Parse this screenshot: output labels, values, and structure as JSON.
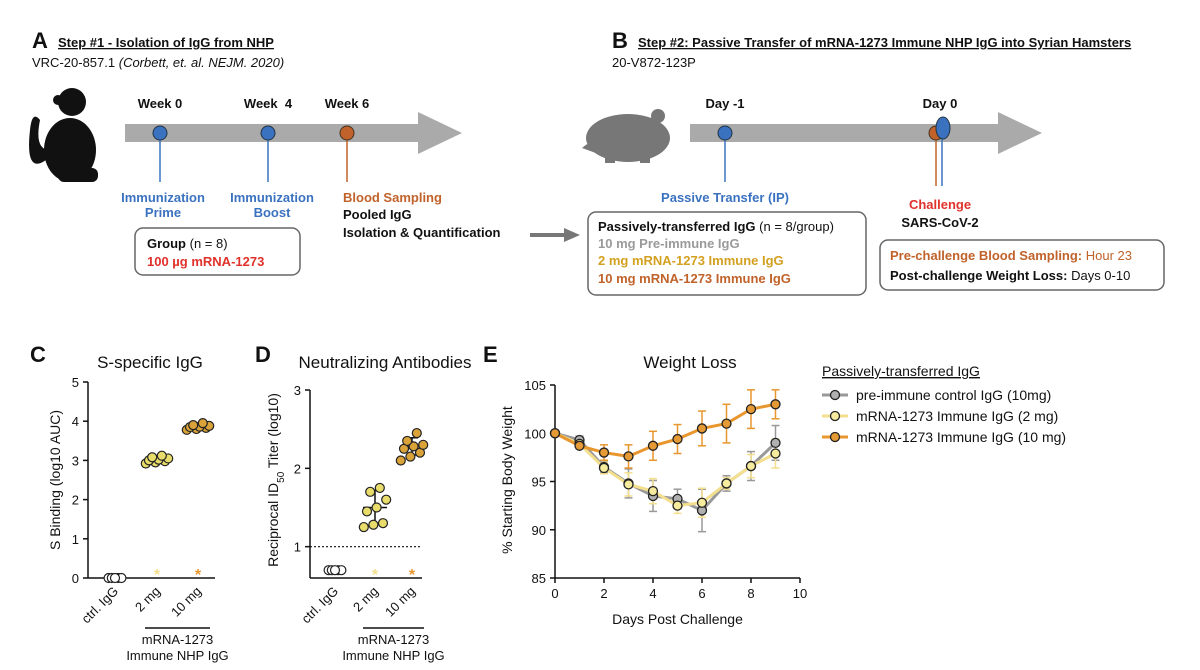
{
  "panel_a": {
    "letter": "A",
    "title": "Step #1 - Isolation of IgG from NHP",
    "subtitle": "VRC-20-857.1",
    "citation": "(Corbett, et. al. NEJM. 2020)",
    "timepoints": [
      "Week 0",
      "Week  4",
      "Week 6"
    ],
    "events": [
      {
        "lines": [
          "Immunization",
          "Prime"
        ]
      },
      {
        "lines": [
          "Immunization",
          "Boost"
        ]
      },
      {
        "lines": [
          "Blood Sampling",
          "Pooled IgG",
          "Isolation & Quantification"
        ]
      }
    ],
    "box": {
      "label": "Group",
      "count": "(n = 8)",
      "treatment": "100 µg mRNA-1273"
    }
  },
  "panel_b": {
    "letter": "B",
    "title": "Step #2: Passive Transfer of mRNA-1273 Immune NHP IgG into Syrian Hamsters",
    "subtitle": "20-V872-123P",
    "timepoints": [
      "Day -1",
      "Day 0"
    ],
    "events": [
      {
        "lines": [
          "Passive Transfer (IP)"
        ]
      },
      {
        "lines": [
          "Challenge",
          "SARS-CoV-2"
        ]
      }
    ],
    "groups_box": {
      "label": "Passively-transferred IgG",
      "count": "(n = 8/group)",
      "items": [
        "10 mg Pre-immune IgG",
        "2 mg mRNA-1273 Immune IgG",
        "10 mg mRNA-1273 Immune IgG"
      ]
    },
    "sampling_box": {
      "lines": [
        {
          "label": "Pre-challenge Blood Sampling:",
          "value": "Hour 23"
        },
        {
          "label": "Post-challenge Weight Loss:",
          "value": "Days 0-10"
        }
      ]
    }
  },
  "chart_data": [
    {
      "type": "dot",
      "panel": "C",
      "title": "S-specific IgG",
      "ylabel": [
        "S Binding (log10 AUC)"
      ],
      "categories": [
        "ctrl. IgG",
        "2 mg",
        "10 mg"
      ],
      "group_label": [
        "mRNA-1273",
        "Immune NHP IgG"
      ],
      "colors": [
        "#ffffff",
        "#e8dc6a",
        "#d9a33a"
      ],
      "values": [
        [
          0,
          0,
          0,
          0,
          0
        ],
        [
          2.92,
          2.95,
          2.98,
          3.0,
          3.02,
          3.05,
          3.08,
          3.12
        ],
        [
          3.78,
          3.8,
          3.83,
          3.85,
          3.86,
          3.88,
          3.9,
          3.95
        ]
      ],
      "labels": [
        null,
        "*",
        "*"
      ],
      "label_colors": [
        null,
        "#f3df8e",
        "#e8962e"
      ],
      "ylim": [
        0,
        5
      ],
      "yticks": [
        0,
        1,
        2,
        3,
        4,
        5
      ]
    },
    {
      "type": "dot",
      "panel": "D",
      "title": "Neutralizing Antibodies",
      "ylabel": [
        "Reciprocal ID",
        "50",
        " Titer (log10)"
      ],
      "categories": [
        "ctrl. IgG",
        "2 mg",
        "10 mg"
      ],
      "group_label": [
        "mRNA-1273",
        "Immune NHP IgG"
      ],
      "colors": [
        "#ffffff",
        "#e8dc6a",
        "#d9a33a"
      ],
      "values": [
        [
          0.7,
          0.7,
          0.7,
          0.7,
          0.7
        ],
        [
          1.25,
          1.28,
          1.3,
          1.45,
          1.5,
          1.6,
          1.7,
          1.75
        ],
        [
          2.1,
          2.15,
          2.2,
          2.25,
          2.28,
          2.3,
          2.35,
          2.45
        ]
      ],
      "means": [
        null,
        1.5,
        2.28
      ],
      "errors": [
        null,
        0.22,
        0.11
      ],
      "labels": [
        null,
        "*",
        "*"
      ],
      "label_colors": [
        null,
        "#f3df8e",
        "#e8962e"
      ],
      "reference_line": 1,
      "ylim": [
        0.6,
        3
      ],
      "yticks": [
        1,
        2,
        3
      ]
    },
    {
      "type": "line",
      "panel": "E",
      "title": "Weight Loss",
      "xlabel": "Days Post Challenge",
      "ylabel": [
        "% Starting Body Weight"
      ],
      "x": [
        0,
        1,
        2,
        3,
        4,
        5,
        6,
        7,
        8,
        9
      ],
      "legend_title": "Passively-transferred IgG",
      "series": [
        {
          "name": "pre-immune control IgG (10mg)",
          "color": "#999999",
          "marker": "#b0b0b0",
          "values": [
            100,
            99.3,
            96.5,
            94.8,
            93.5,
            93.2,
            92.0,
            94.8,
            96.6,
            99.0
          ],
          "errors": [
            0,
            0.4,
            0.6,
            1.5,
            1.6,
            1.0,
            2.2,
            0.8,
            1.5,
            1.8
          ]
        },
        {
          "name": "mRNA-1273 Immune IgG (2 mg)",
          "color": "#f3df8e",
          "marker": "#f7ec9e",
          "values": [
            100,
            98.9,
            96.4,
            94.7,
            94.0,
            92.5,
            92.8,
            94.8,
            96.6,
            97.9
          ],
          "errors": [
            0,
            0.3,
            0.6,
            1.2,
            1.3,
            0.8,
            1.5,
            0.6,
            1.2,
            1.5
          ]
        },
        {
          "name": "mRNA-1273 Immune IgG (10 mg)",
          "color": "#e8962e",
          "marker": "#e59a35",
          "values": [
            100,
            98.7,
            98.0,
            97.6,
            98.7,
            99.4,
            100.5,
            101.0,
            102.5,
            103.0
          ],
          "errors": [
            0,
            0.3,
            0.8,
            1.2,
            1.5,
            1.5,
            1.8,
            2.0,
            2.0,
            1.5
          ]
        }
      ],
      "xlim": [
        0,
        10
      ],
      "xticks": [
        0,
        2,
        4,
        6,
        8,
        10
      ],
      "ylim": [
        85,
        105
      ],
      "yticks": [
        85,
        90,
        95,
        100,
        105
      ]
    }
  ]
}
